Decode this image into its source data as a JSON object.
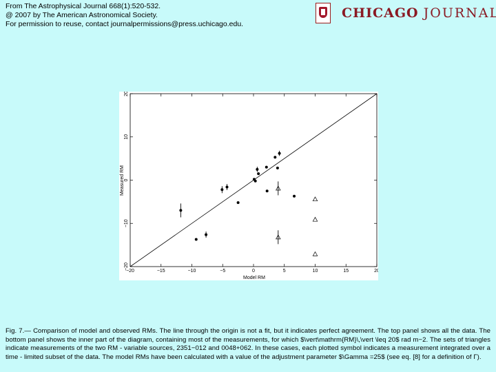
{
  "source": {
    "line1": "From The Astrophysical Journal 668(1):520-532.",
    "line2": "@ 2007 by The American Astronomical Society.",
    "line3": "For permission to reuse, contact journalpermissions@press.uchicago.edu."
  },
  "brand": {
    "part1": "CHICAGO",
    "part2": "JOURNALS",
    "seal_icon": "university-seal-icon",
    "color": "#8a1a24"
  },
  "caption": "Fig. 7.— Comparison of model and observed RMs. The line through the origin is not a fit, but it indicates perfect agreement. The top panel shows all the data. The bottom panel shows the inner part of the diagram, containing most of the measurements, for which $\\vert\\mathrm{RM}\\,\\vert \\leq 20$ rad m−2. The sets of triangles indicate measurements of the two RM - variable sources, 2351−012 and 0048+062. In these cases, each plotted symbol indicates a measurement integrated over a time - limited subset of the data. The model RMs have been calculated with a value of the adjustment parameter $\\Gamma =25$ (see eq. [8] for a definition of Γ).",
  "chart_data": {
    "type": "scatter",
    "xlabel": "Model RM",
    "ylabel": "Measured RM",
    "xlim": [
      -20,
      20
    ],
    "ylim": [
      -20,
      20
    ],
    "x_ticks": [
      -20,
      -15,
      -10,
      -5,
      0,
      5,
      10,
      15,
      20
    ],
    "x_tick_labels": [
      "−20",
      "−15",
      "−10",
      "−5",
      "0",
      "5",
      "10",
      "15",
      "20"
    ],
    "y_ticks": [
      -20,
      -10,
      0,
      10,
      20
    ],
    "y_tick_labels": [
      "−20",
      "−10",
      "0",
      "10",
      "20"
    ],
    "grid": false,
    "reference_line": {
      "from": [
        -20,
        -20
      ],
      "to": [
        20,
        20
      ]
    },
    "series": [
      {
        "marker": "circle",
        "points": [
          {
            "x": -11.8,
            "y": -7.0,
            "err": 1.6
          },
          {
            "x": -9.3,
            "y": -13.7,
            "err": 0
          },
          {
            "x": -7.7,
            "y": -12.6,
            "err": 0.7
          },
          {
            "x": -5.1,
            "y": -2.2,
            "err": 0.8
          },
          {
            "x": -4.3,
            "y": -1.6,
            "err": 0.7
          },
          {
            "x": -2.5,
            "y": -5.2,
            "err": 0
          },
          {
            "x": 0.1,
            "y": 0.2,
            "err": 0
          },
          {
            "x": 0.3,
            "y": -0.2,
            "err": 0
          },
          {
            "x": 0.6,
            "y": 2.5,
            "err": 0.6
          },
          {
            "x": 0.8,
            "y": 1.5,
            "err": 0
          },
          {
            "x": 2.1,
            "y": 3.0,
            "err": 0
          },
          {
            "x": 2.2,
            "y": -2.5,
            "err": 0
          },
          {
            "x": 3.5,
            "y": 5.3,
            "err": 0
          },
          {
            "x": 3.9,
            "y": 2.8,
            "err": 0
          },
          {
            "x": 4.2,
            "y": 6.2,
            "err": 0.6
          },
          {
            "x": 6.6,
            "y": -3.7,
            "err": 0
          }
        ]
      },
      {
        "marker": "triangle-open",
        "points": [
          {
            "x": 4.0,
            "y": -1.9,
            "err": 1.6
          },
          {
            "x": 4.0,
            "y": -13.2,
            "err": 1.6
          },
          {
            "x": 10.0,
            "y": -4.4,
            "err": 0
          },
          {
            "x": 10.0,
            "y": -9.1,
            "err": 0
          },
          {
            "x": 10.0,
            "y": -17.1,
            "err": 0
          }
        ]
      }
    ]
  }
}
